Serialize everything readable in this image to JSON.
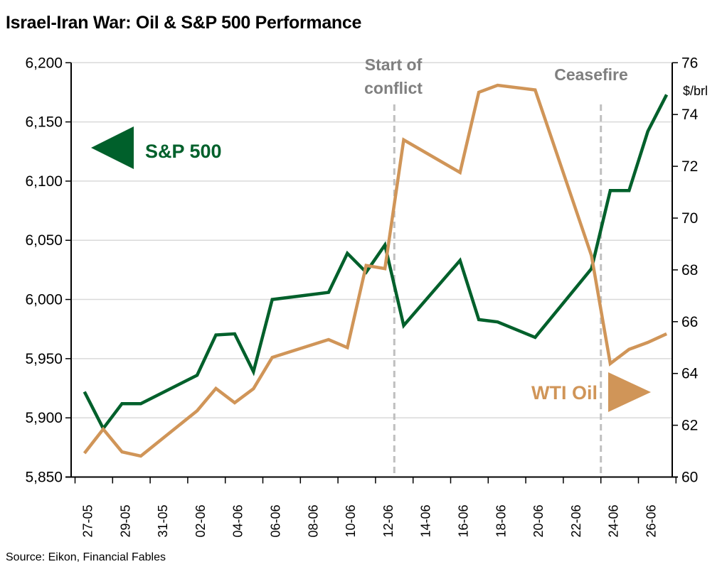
{
  "chart_data": {
    "type": "line",
    "title": "Israel-Iran War: Oil & S&P 500 Performance",
    "source": "Source: Eikon, Financial Fables",
    "x_tick_labels": [
      "27-05",
      "29-05",
      "31-05",
      "02-06",
      "04-06",
      "06-06",
      "08-06",
      "10-06",
      "12-06",
      "14-06",
      "16-06",
      "18-06",
      "20-06",
      "22-06",
      "24-06",
      "26-06"
    ],
    "x_range": [
      "27-05",
      "28-06"
    ],
    "left_axis": {
      "ylim": [
        5850,
        6200
      ],
      "ticks": [
        5850,
        5900,
        5950,
        6000,
        6050,
        6100,
        6150,
        6200
      ],
      "tick_labels": [
        "5,850",
        "5,900",
        "5,950",
        "6,000",
        "6,050",
        "6,100",
        "6,150",
        "6,200"
      ]
    },
    "right_axis": {
      "ylim": [
        60,
        76
      ],
      "ticks": [
        60,
        62,
        64,
        66,
        68,
        70,
        72,
        74,
        76
      ],
      "tick_labels": [
        "60",
        "62",
        "64",
        "66",
        "68",
        "70",
        "72",
        "74",
        "76"
      ],
      "unit_label": "$/brl"
    },
    "grid": true,
    "series": [
      {
        "name": "S&P 500",
        "axis": "left",
        "color": "#00602b",
        "label_arrow": "left",
        "points": [
          [
            "27-05",
            5922
          ],
          [
            "28-05",
            5891
          ],
          [
            "29-05",
            5912
          ],
          [
            "30-05",
            5912
          ],
          [
            "02-06",
            5936
          ],
          [
            "03-06",
            5970
          ],
          [
            "04-06",
            5971
          ],
          [
            "05-06",
            5939
          ],
          [
            "06-06",
            6000
          ],
          [
            "09-06",
            6006
          ],
          [
            "10-06",
            6039
          ],
          [
            "11-06",
            6023
          ],
          [
            "12-06",
            6046
          ],
          [
            "13-06",
            5978
          ],
          [
            "16-06",
            6033
          ],
          [
            "17-06",
            5983
          ],
          [
            "18-06",
            5981
          ],
          [
            "20-06",
            5968
          ],
          [
            "23-06",
            6026
          ],
          [
            "24-06",
            6092
          ],
          [
            "25-06",
            6092
          ],
          [
            "26-06",
            6142
          ],
          [
            "27-06",
            6173
          ]
        ]
      },
      {
        "name": "WTI Oil",
        "axis": "right",
        "color": "#d09558",
        "label_arrow": "right",
        "points": [
          [
            "27-05",
            60.92
          ],
          [
            "28-05",
            61.85
          ],
          [
            "29-05",
            60.97
          ],
          [
            "30-05",
            60.81
          ],
          [
            "02-06",
            62.56
          ],
          [
            "03-06",
            63.42
          ],
          [
            "04-06",
            62.87
          ],
          [
            "05-06",
            63.41
          ],
          [
            "06-06",
            64.62
          ],
          [
            "09-06",
            65.31
          ],
          [
            "10-06",
            65.0
          ],
          [
            "11-06",
            68.17
          ],
          [
            "12-06",
            68.05
          ],
          [
            "13-06",
            73.02
          ],
          [
            "16-06",
            71.76
          ],
          [
            "17-06",
            74.86
          ],
          [
            "18-06",
            75.13
          ],
          [
            "20-06",
            74.95
          ],
          [
            "23-06",
            68.55
          ],
          [
            "24-06",
            64.38
          ],
          [
            "25-06",
            64.93
          ],
          [
            "26-06",
            65.2
          ],
          [
            "27-06",
            65.53
          ]
        ]
      }
    ],
    "annotations": [
      {
        "text_lines": [
          "Start of",
          "conflict"
        ],
        "between": [
          "12-06",
          "13-06"
        ]
      },
      {
        "text_lines": [
          "Ceasefire"
        ],
        "between": [
          "23-06",
          "24-06"
        ]
      }
    ]
  }
}
